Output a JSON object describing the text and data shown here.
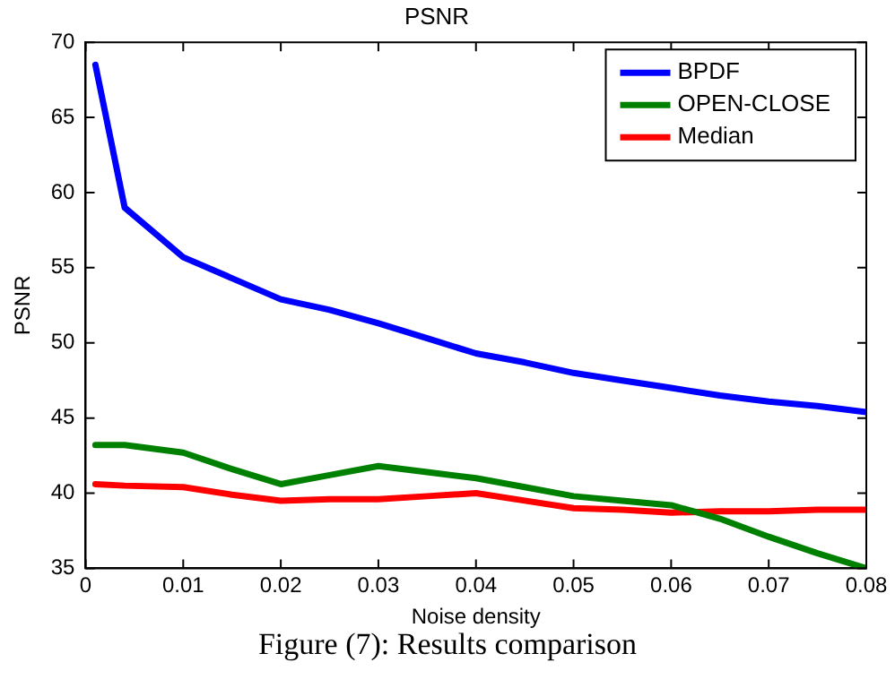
{
  "chart_data": {
    "type": "line",
    "title": "PSNR",
    "xlabel": "Noise density",
    "ylabel": "PSNR",
    "annotations": [
      "Figure (7): Results comparison"
    ],
    "xlim": [
      0,
      0.08
    ],
    "xticks": [
      0,
      0.01,
      0.02,
      0.03,
      0.04,
      0.05,
      0.06,
      0.07,
      0.08
    ],
    "ylim": [
      35,
      70
    ],
    "yticks": [
      35,
      40,
      45,
      50,
      55,
      60,
      65,
      70
    ],
    "grid": false,
    "legend": "top right",
    "marker": "none",
    "line_style": "solid",
    "x": [
      0.001,
      0.004,
      0.01,
      0.015,
      0.02,
      0.025,
      0.03,
      0.035,
      0.04,
      0.045,
      0.05,
      0.055,
      0.06,
      0.065,
      0.07,
      0.075,
      0.08
    ],
    "series": [
      {
        "name": "BPDF",
        "color": "#0000ff",
        "values": [
          68.5,
          59.0,
          55.7,
          54.3,
          52.9,
          52.2,
          51.3,
          50.3,
          49.3,
          48.7,
          48.0,
          47.5,
          47.0,
          46.5,
          46.1,
          45.8,
          45.4
        ]
      },
      {
        "name": "OPEN-CLOSE",
        "color": "#008000",
        "values": [
          43.2,
          43.2,
          42.7,
          41.6,
          40.6,
          41.2,
          41.8,
          41.4,
          41.0,
          40.4,
          39.8,
          39.5,
          39.2,
          38.3,
          37.1,
          36.0,
          35.0
        ]
      },
      {
        "name": "Median",
        "color": "#ff0000",
        "values": [
          40.6,
          40.5,
          40.4,
          39.9,
          39.5,
          39.6,
          39.6,
          39.8,
          40.0,
          39.5,
          39.0,
          38.9,
          38.7,
          38.8,
          38.8,
          38.9,
          38.9
        ]
      }
    ]
  }
}
